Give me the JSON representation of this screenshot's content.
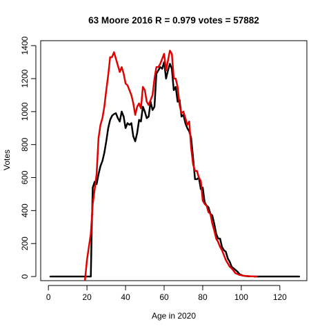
{
  "chart_data": {
    "type": "line",
    "title": "63 Moore 2016 R = 0.979 votes = 57882",
    "xlabel": "Age in 2020",
    "ylabel": "Votes",
    "xlim": [
      -4,
      134
    ],
    "ylim": [
      -25,
      1430
    ],
    "xticks": [
      "0",
      "20",
      "40",
      "60",
      "80",
      "100",
      "120"
    ],
    "yticks": [
      "0",
      "200",
      "400",
      "600",
      "800",
      "1000",
      "1200",
      "1400"
    ],
    "grid": false,
    "legend": "none",
    "series": [
      {
        "color": "#000000",
        "x": [
          1,
          22,
          22.5,
          23,
          24,
          25,
          26,
          27,
          28,
          29,
          30,
          31,
          32,
          33,
          34,
          35,
          36,
          37,
          38,
          39,
          40,
          41,
          42,
          43,
          44,
          45,
          46,
          47,
          48,
          49,
          50,
          51,
          52,
          53,
          54,
          55,
          56,
          57,
          58,
          59,
          60,
          61,
          62,
          63,
          64,
          65,
          66,
          67,
          68,
          69,
          70,
          71,
          72,
          73,
          74,
          75,
          76,
          77,
          78,
          79,
          80,
          81,
          82,
          83,
          84,
          85,
          86,
          87,
          88,
          89,
          90,
          91,
          92,
          93,
          94,
          95,
          96,
          97,
          98,
          99,
          100,
          101,
          102,
          103,
          104,
          105,
          106,
          107,
          108,
          110,
          115,
          120,
          125,
          130
        ],
        "y": [
          0,
          0,
          300,
          540,
          575,
          560,
          620,
          670,
          700,
          750,
          820,
          900,
          950,
          975,
          985,
          990,
          960,
          940,
          1000,
          970,
          900,
          930,
          920,
          930,
          850,
          820,
          870,
          950,
          940,
          1030,
          1000,
          960,
          970,
          1060,
          1010,
          1030,
          1230,
          1250,
          1270,
          1260,
          1300,
          1200,
          1250,
          1290,
          1260,
          1130,
          1150,
          1060,
          1070,
          970,
          980,
          930,
          900,
          880,
          840,
          720,
          590,
          590,
          600,
          530,
          540,
          450,
          430,
          420,
          380,
          370,
          320,
          260,
          230,
          230,
          180,
          160,
          150,
          110,
          90,
          60,
          50,
          40,
          30,
          15,
          10,
          5,
          3,
          2,
          1,
          1,
          1,
          0,
          0,
          0,
          0,
          0,
          0,
          0
        ]
      },
      {
        "color": "#e00000",
        "x": [
          19,
          20,
          21,
          22,
          23,
          24,
          25,
          26,
          27,
          28,
          29,
          30,
          31,
          32,
          33,
          34,
          35,
          36,
          37,
          38,
          39,
          40,
          41,
          42,
          43,
          44,
          45,
          46,
          47,
          48,
          49,
          50,
          51,
          52,
          53,
          54,
          55,
          56,
          57,
          58,
          59,
          60,
          61,
          62,
          63,
          64,
          65,
          66,
          67,
          68,
          69,
          70,
          71,
          72,
          73,
          74,
          75,
          76,
          77,
          78,
          79,
          80,
          81,
          82,
          83,
          84,
          85,
          86,
          87,
          88,
          89,
          90,
          91,
          92,
          93,
          94,
          95,
          96,
          97,
          98,
          99,
          100,
          101,
          102,
          103,
          104,
          105,
          106,
          107,
          108
        ],
        "y": [
          -20,
          100,
          180,
          260,
          440,
          530,
          620,
          840,
          920,
          960,
          1030,
          1130,
          1220,
          1330,
          1330,
          1360,
          1320,
          1280,
          1240,
          1270,
          1230,
          1170,
          1160,
          1130,
          1100,
          1050,
          980,
          1030,
          1050,
          1020,
          1150,
          1130,
          1060,
          1040,
          1070,
          1100,
          1200,
          1270,
          1270,
          1290,
          1320,
          1350,
          1250,
          1310,
          1370,
          1350,
          1200,
          1200,
          1150,
          1040,
          990,
          1000,
          960,
          920,
          940,
          780,
          680,
          640,
          640,
          600,
          580,
          460,
          440,
          430,
          390,
          380,
          320,
          280,
          230,
          210,
          180,
          160,
          130,
          100,
          80,
          60,
          50,
          35,
          20,
          15,
          10,
          8,
          5,
          4,
          3,
          2,
          1,
          1,
          0,
          0
        ]
      }
    ]
  }
}
